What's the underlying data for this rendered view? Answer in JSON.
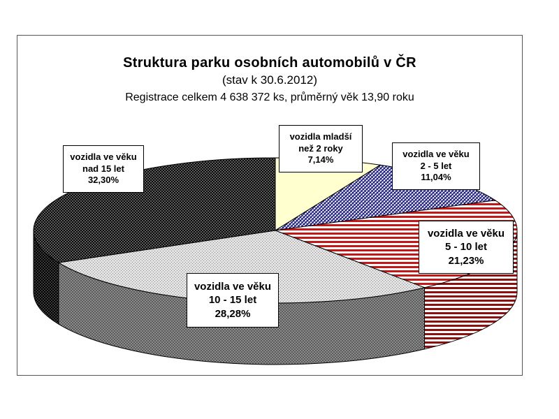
{
  "chart_data": {
    "type": "pie",
    "title": "Struktura parku osobních automobilů v ČR",
    "subtitle": "(stav k 30.6.2012)",
    "note": "Registrace celkem 4 638 372 ks, průměrný věk 13,90 roku",
    "three_d": true,
    "slices": [
      {
        "line1": "vozidla mladší",
        "line2": "než 2 roky",
        "value_label": "7,14%",
        "value": 7.14,
        "fill": "#FFFFCC",
        "pattern": "solid"
      },
      {
        "line1": "vozidla ve věku",
        "line2": "2 - 5 let",
        "value_label": "11,04%",
        "value": 11.04,
        "fill": "#1E1E8C",
        "pattern": "hatch-navy"
      },
      {
        "line1": "vozidla ve věku",
        "line2": "5 - 10 let",
        "value_label": "21,23%",
        "value": 21.23,
        "fill": "#C01818",
        "pattern": "stripes-red"
      },
      {
        "line1": "vozidla ve věku",
        "line2": "10 - 15 let",
        "value_label": "28,28%",
        "value": 28.28,
        "fill": "#C8C8C8",
        "pattern": "dots-light"
      },
      {
        "line1": "vozidla ve věku",
        "line2": "nad 15 let",
        "value_label": "32,30%",
        "value": 32.3,
        "fill": "#3A3A3A",
        "pattern": "dots-dark"
      }
    ]
  }
}
